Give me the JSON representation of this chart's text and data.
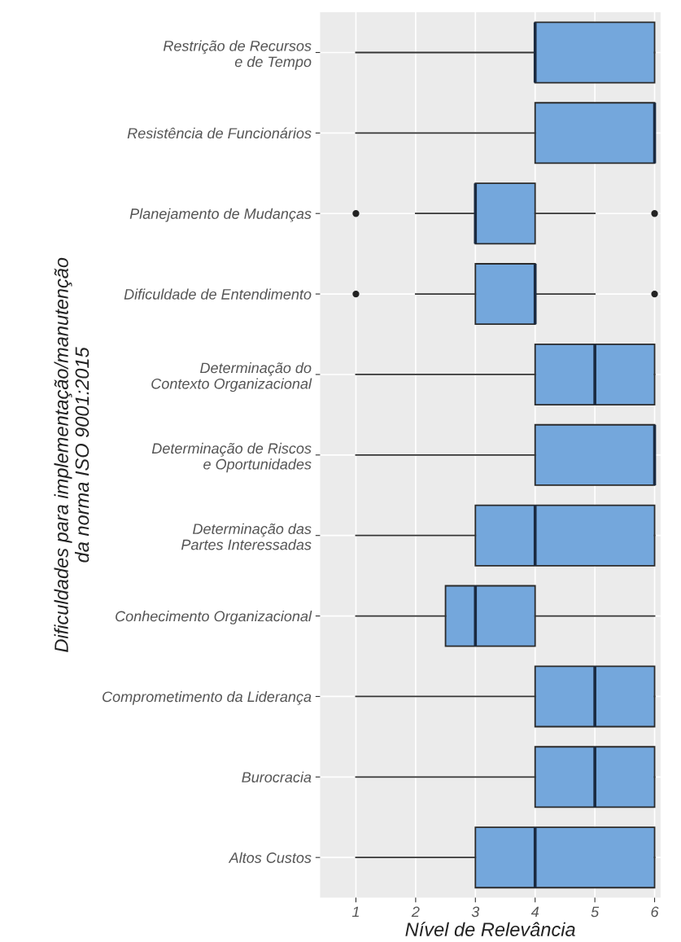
{
  "chart_data": {
    "type": "box",
    "orientation": "horizontal",
    "xlabel": "Nível de Relevância",
    "ylabel": "Dificuldades para implementação/manutenção\nda norma ISO 9001:2015",
    "categories": [
      "Restrição de Recursos\ne de Tempo",
      "Resistência de Funcionários",
      "Planejamento de Mudanças",
      "Dificuldade de Entendimento",
      "Determinação do\nContexto Organizacional",
      "Determinação de Riscos\ne Oportunidades",
      "Determinação das\nPartes Interessadas",
      "Conhecimento Organizacional",
      "Comprometimento da Liderança",
      "Burocracia",
      "Altos Custos"
    ],
    "color": "#74a7dc",
    "boxes": [
      {
        "low": 1,
        "q1": 4,
        "median": 4,
        "q3": 6,
        "high": 6
      },
      {
        "low": 1,
        "q1": 4,
        "median": 6,
        "q3": 6,
        "high": 6
      },
      {
        "low": 2,
        "q1": 3,
        "median": 3,
        "q3": 4,
        "high": 5,
        "outliers": [
          1,
          6
        ]
      },
      {
        "low": 2,
        "q1": 3,
        "median": 4,
        "q3": 4,
        "high": 5,
        "outliers": [
          1,
          6
        ]
      },
      {
        "low": 1,
        "q1": 4,
        "median": 5,
        "q3": 6,
        "high": 6
      },
      {
        "low": 1,
        "q1": 4,
        "median": 6,
        "q3": 6,
        "high": 6
      },
      {
        "low": 1,
        "q1": 3,
        "median": 4,
        "q3": 6,
        "high": 6
      },
      {
        "low": 1,
        "q1": 2.5,
        "median": 3,
        "q3": 4,
        "high": 6
      },
      {
        "low": 1,
        "q1": 4,
        "median": 5,
        "q3": 6,
        "high": 6
      },
      {
        "low": 1,
        "q1": 4,
        "median": 5,
        "q3": 6,
        "high": 6
      },
      {
        "low": 1,
        "q1": 3,
        "median": 4,
        "q3": 6,
        "high": 6
      }
    ],
    "xlim": [
      0.4,
      6.1
    ],
    "xticks": [
      1,
      2,
      3,
      4,
      5,
      6
    ],
    "grid": true
  }
}
